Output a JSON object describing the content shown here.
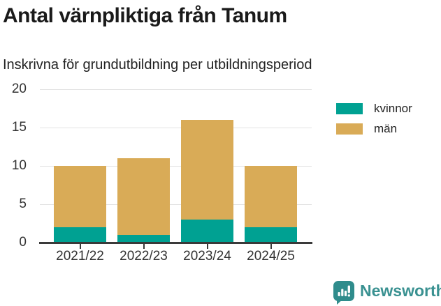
{
  "header": {
    "title": "Antal värnpliktiga från Tanum",
    "subtitle": "Inskrivna för grundutbildning per utbildningsperiod"
  },
  "chart_data": {
    "type": "bar",
    "stacked": true,
    "title": "Antal värnpliktiga från Tanum",
    "subtitle": "Inskrivna för grundutbildning per utbildningsperiod",
    "categories": [
      "2021/22",
      "2022/23",
      "2023/24",
      "2024/25"
    ],
    "series": [
      {
        "name": "kvinnor",
        "color": "#00a192",
        "values": [
          2,
          1,
          3,
          2
        ]
      },
      {
        "name": "män",
        "color": "#d9ab57",
        "values": [
          8,
          10,
          13,
          8
        ]
      }
    ],
    "totals": [
      10,
      11,
      16,
      10
    ],
    "xlabel": "",
    "ylabel": "",
    "ylim": [
      0,
      20
    ],
    "yticks": [
      0,
      5,
      10,
      15,
      20
    ],
    "grid": true,
    "legend_position": "right"
  },
  "colors": {
    "grid": "#e2e2e2",
    "axis": "#3a3a3a",
    "tick_text": "#333333",
    "brand_text": "#3a9191",
    "logo_bubble": "#2f8c8c"
  },
  "footer": {
    "brand": "Newsworthy"
  }
}
